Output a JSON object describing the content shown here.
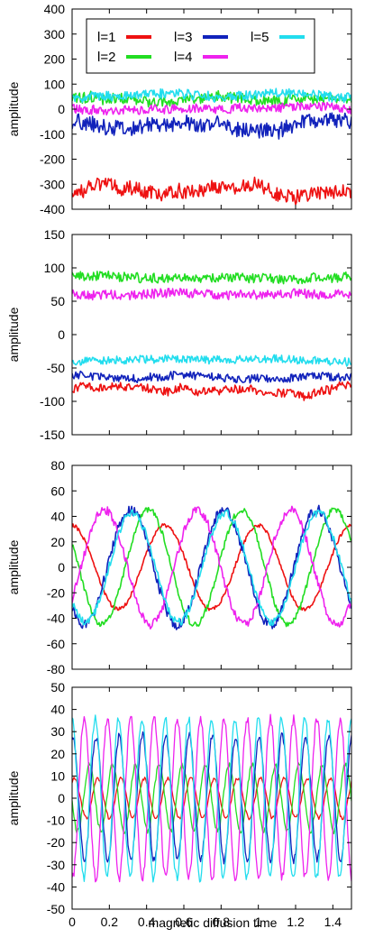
{
  "figure": {
    "xlabel": "magnetic diffusion time",
    "legend": [
      {
        "label": "l=1",
        "color": "#ee1111"
      },
      {
        "label": "l=2",
        "color": "#22dd22"
      },
      {
        "label": "l=3",
        "color": "#1122bb"
      },
      {
        "label": "l=4",
        "color": "#ee22ee"
      },
      {
        "label": "l=5",
        "color": "#22ddee"
      }
    ]
  },
  "chart_data": [
    {
      "type": "line",
      "ylabel": "amplitude",
      "xlim": [
        0,
        1.5
      ],
      "ylim": [
        -400,
        400
      ],
      "yticks": [
        -400,
        -300,
        -200,
        -100,
        0,
        100,
        200,
        300,
        400
      ],
      "legend_position": "top",
      "series": [
        {
          "name": "l=1",
          "color": "#ee1111",
          "mean": -330,
          "noise": 28,
          "wobble": 35,
          "freq": 0
        },
        {
          "name": "l=2",
          "color": "#22dd22",
          "mean": 40,
          "noise": 22,
          "wobble": 15,
          "freq": 0
        },
        {
          "name": "l=3",
          "color": "#1122bb",
          "mean": -60,
          "noise": 30,
          "wobble": 25,
          "freq": 0
        },
        {
          "name": "l=4",
          "color": "#ee22ee",
          "mean": 0,
          "noise": 18,
          "wobble": 10,
          "freq": 0
        },
        {
          "name": "l=5",
          "color": "#22ddee",
          "mean": 55,
          "noise": 20,
          "wobble": 10,
          "freq": 0
        }
      ]
    },
    {
      "type": "line",
      "ylabel": "amplitude",
      "xlim": [
        0,
        1.5
      ],
      "ylim": [
        -150,
        150
      ],
      "yticks": [
        -150,
        -100,
        -50,
        0,
        50,
        100,
        150
      ],
      "series": [
        {
          "name": "l=1",
          "color": "#ee1111",
          "mean": -82,
          "noise": 6,
          "wobble": 10,
          "freq": 0
        },
        {
          "name": "l=2",
          "color": "#22dd22",
          "mean": 85,
          "noise": 7,
          "wobble": 4,
          "freq": 0
        },
        {
          "name": "l=3",
          "color": "#1122bb",
          "mean": -63,
          "noise": 6,
          "wobble": 4,
          "freq": 0
        },
        {
          "name": "l=4",
          "color": "#ee22ee",
          "mean": 60,
          "noise": 7,
          "wobble": 3,
          "freq": 0
        },
        {
          "name": "l=5",
          "color": "#22ddee",
          "mean": -38,
          "noise": 6,
          "wobble": 3,
          "freq": 0
        }
      ]
    },
    {
      "type": "line",
      "ylabel": "amplitude",
      "xlim": [
        0,
        1.5
      ],
      "ylim": [
        -80,
        80
      ],
      "yticks": [
        -80,
        -60,
        -40,
        -20,
        0,
        20,
        40,
        60,
        80
      ],
      "series": [
        {
          "name": "l=1",
          "color": "#ee1111",
          "mean": 0,
          "amp": 33,
          "freq": 2.0,
          "phase": 1.6,
          "noise": 1.5
        },
        {
          "name": "l=2",
          "color": "#22dd22",
          "mean": 0,
          "amp": 45,
          "freq": 2.0,
          "phase": 2.7,
          "noise": 2.5
        },
        {
          "name": "l=3",
          "color": "#1122bb",
          "mean": 0,
          "amp": 45,
          "freq": 2.0,
          "phase": 3.9,
          "noise": 4
        },
        {
          "name": "l=4",
          "color": "#ee22ee",
          "mean": 0,
          "amp": 45,
          "freq": 2.0,
          "phase": -0.6,
          "noise": 3.5
        },
        {
          "name": "l=5",
          "color": "#22ddee",
          "mean": 0,
          "amp": 43,
          "freq": 2.0,
          "phase": 3.8,
          "noise": 3
        }
      ]
    },
    {
      "type": "line",
      "ylabel": "amplitude",
      "xlim": [
        0,
        1.5
      ],
      "ylim": [
        -50,
        50
      ],
      "yticks": [
        -50,
        -40,
        -30,
        -20,
        -10,
        0,
        10,
        20,
        30,
        40,
        50
      ],
      "xticks": [
        "0",
        "0.2",
        "0.4",
        "0.6",
        "0.8",
        "1",
        "1.2",
        "1.4"
      ],
      "xtick_values": [
        0,
        0.2,
        0.4,
        0.6,
        0.8,
        1,
        1.2,
        1.4
      ],
      "series": [
        {
          "name": "l=1",
          "color": "#ee1111",
          "mean": 0,
          "amp": 9,
          "freq": 8.0,
          "phase": 0.9,
          "noise": 0.8
        },
        {
          "name": "l=2",
          "color": "#22dd22",
          "mean": 0,
          "amp": 15,
          "freq": 8.0,
          "phase": 3.2,
          "noise": 1.2
        },
        {
          "name": "l=3",
          "color": "#1122bb",
          "mean": 0,
          "amp": 28,
          "freq": 8.0,
          "phase": 1.4,
          "noise": 2.0
        },
        {
          "name": "l=4",
          "color": "#ee22ee",
          "mean": 0,
          "amp": 36,
          "freq": 8.0,
          "phase": -1.7,
          "noise": 2.0
        },
        {
          "name": "l=5",
          "color": "#22ddee",
          "mean": 0,
          "amp": 36,
          "freq": 8.0,
          "phase": 1.6,
          "noise": 2.0
        }
      ]
    }
  ]
}
